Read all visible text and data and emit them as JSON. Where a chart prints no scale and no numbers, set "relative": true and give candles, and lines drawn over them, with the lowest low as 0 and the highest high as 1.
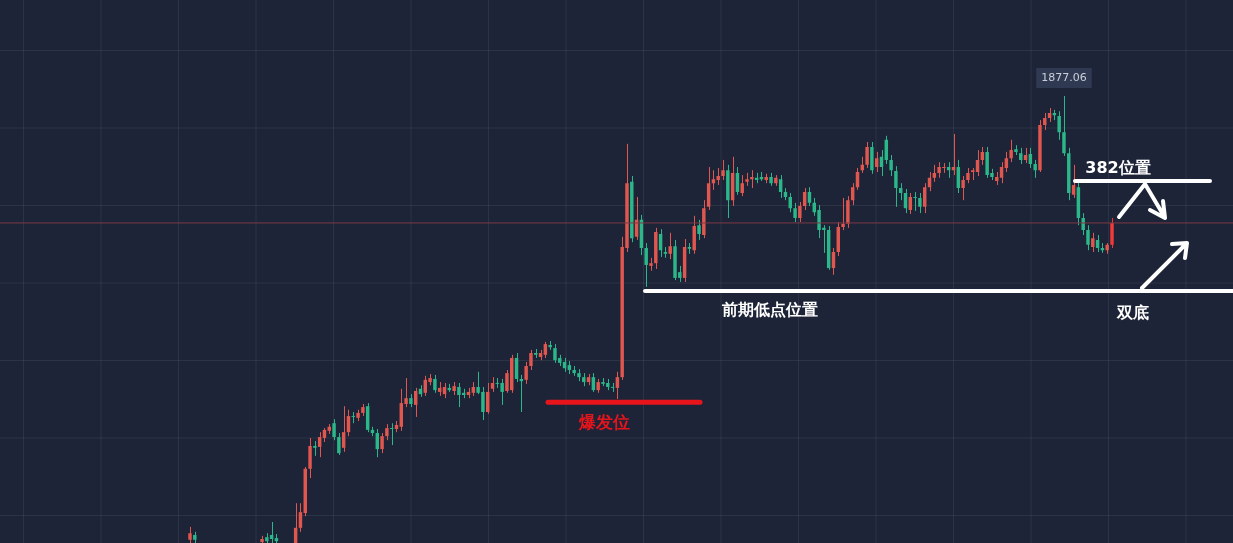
{
  "chart_data": {
    "type": "candlestick",
    "relative": true,
    "grid": true,
    "categories": [
      null,
      null,
      null,
      null,
      null,
      null,
      null,
      null,
      null,
      null,
      null,
      null,
      null,
      null,
      null,
      null,
      null,
      null,
      null,
      null,
      null,
      null,
      null,
      null,
      null,
      null,
      null,
      null,
      null,
      null,
      null,
      null,
      null,
      null,
      null,
      null,
      null,
      null,
      null,
      null,
      null,
      null,
      null,
      null,
      null,
      null,
      null,
      null,
      null,
      null,
      null,
      null,
      null,
      null,
      null,
      null,
      null,
      null,
      null,
      null,
      null,
      null,
      null,
      null,
      null,
      null,
      null,
      null,
      null,
      null,
      null,
      null,
      null,
      null,
      null,
      null,
      null,
      null,
      null,
      null,
      null,
      null,
      null,
      null,
      null,
      null,
      null,
      null,
      null,
      null,
      null,
      null,
      null,
      null,
      null,
      null,
      null,
      null,
      null,
      null,
      null,
      null,
      null,
      null,
      null,
      null,
      null,
      null,
      null,
      null,
      null,
      null,
      null,
      null,
      null,
      null,
      null,
      null,
      null,
      null,
      null,
      null,
      null,
      null,
      null,
      null,
      null,
      null,
      null,
      null,
      null,
      null,
      null,
      null,
      null,
      null,
      null,
      null,
      null,
      null,
      null,
      null,
      null,
      null,
      null,
      null,
      null,
      null,
      null,
      null,
      null,
      null,
      null,
      null,
      null,
      null,
      null,
      null,
      null,
      null,
      null,
      null,
      null,
      null,
      null,
      null,
      null,
      null,
      null,
      null,
      null,
      null,
      null,
      null,
      null,
      null,
      null,
      null,
      null,
      null,
      null,
      null,
      null,
      null,
      null,
      null,
      null,
      null,
      null,
      null,
      null,
      null,
      null
    ],
    "ohlc": [
      [
        0.007,
        0.036,
        0,
        0.022
      ],
      [
        0.018,
        0.025,
        0,
        0.007
      ],
      null,
      null,
      null,
      null,
      null,
      null,
      null,
      null,
      null,
      null,
      null,
      null,
      null,
      [
        0.002,
        0.016,
        0,
        0.009
      ],
      [
        0.013,
        0.022,
        0,
        0.004
      ],
      [
        0.018,
        0.047,
        0,
        0.009
      ],
      [
        0.011,
        0.02,
        0,
        0.004
      ],
      null,
      null,
      null,
      [
        0,
        0.089,
        0,
        0.034
      ],
      [
        0.034,
        0.089,
        0.025,
        0.069
      ],
      [
        0.067,
        0.17,
        0.06,
        0.166
      ],
      [
        0.166,
        0.235,
        0.145,
        0.217
      ],
      [
        0.217,
        0.228,
        0.195,
        0.213
      ],
      [
        0.215,
        0.248,
        0.192,
        0.237
      ],
      [
        0.235,
        0.257,
        0.226,
        0.253
      ],
      [
        0.251,
        0.266,
        0.244,
        0.26
      ],
      [
        0.268,
        0.277,
        0.23,
        0.237
      ],
      [
        0.237,
        0.246,
        0.197,
        0.201
      ],
      [
        0.213,
        0.306,
        0.204,
        0.248
      ],
      [
        0.248,
        0.298,
        0.239,
        0.284
      ],
      [
        0.284,
        0.293,
        0.268,
        0.282
      ],
      [
        0.28,
        0.298,
        0.273,
        0.291
      ],
      [
        0.291,
        0.311,
        0.284,
        0.304
      ],
      [
        0.306,
        0.313,
        0.248,
        0.253
      ],
      [
        0.253,
        0.26,
        0.239,
        0.246
      ],
      [
        0.246,
        0.255,
        0.192,
        0.21
      ],
      [
        0.21,
        0.246,
        0.201,
        0.239
      ],
      [
        0.239,
        0.266,
        0.23,
        0.257
      ],
      [
        0.257,
        0.268,
        0.219,
        0.255
      ],
      [
        0.255,
        0.273,
        0.248,
        0.264
      ],
      [
        0.26,
        0.345,
        0.251,
        0.313
      ],
      [
        0.311,
        0.369,
        0.304,
        0.324
      ],
      [
        0.324,
        0.333,
        0.304,
        0.311
      ],
      [
        0.309,
        0.347,
        0.282,
        0.34
      ],
      [
        0.345,
        0.353,
        0.327,
        0.333
      ],
      [
        0.336,
        0.374,
        0.329,
        0.365
      ],
      [
        0.36,
        0.378,
        0.353,
        0.369
      ],
      [
        0.367,
        0.376,
        0.336,
        0.342
      ],
      [
        0.338,
        0.36,
        0.329,
        0.347
      ],
      [
        0.333,
        0.358,
        0.324,
        0.349
      ],
      [
        0.347,
        0.356,
        0.338,
        0.342
      ],
      [
        0.34,
        0.36,
        0.331,
        0.351
      ],
      [
        0.349,
        0.358,
        0.304,
        0.331
      ],
      [
        0.336,
        0.345,
        0.324,
        0.331
      ],
      [
        0.331,
        0.347,
        0.324,
        0.338
      ],
      [
        0.336,
        0.36,
        0.329,
        0.349
      ],
      [
        0.349,
        0.383,
        0.333,
        0.336
      ],
      [
        0.338,
        0.349,
        0.275,
        0.293
      ],
      [
        0.293,
        0.358,
        0.289,
        0.338
      ],
      [
        0.345,
        0.371,
        0.338,
        0.358
      ],
      [
        0.358,
        0.369,
        0.347,
        0.356
      ],
      [
        0.358,
        0.367,
        0.309,
        0.338
      ],
      [
        0.34,
        0.387,
        0.336,
        0.38
      ],
      [
        0.342,
        0.421,
        0.336,
        0.414
      ],
      [
        0.414,
        0.425,
        0.36,
        0.367
      ],
      [
        0.367,
        0.376,
        0.293,
        0.362
      ],
      [
        0.365,
        0.405,
        0.356,
        0.396
      ],
      [
        0.396,
        0.432,
        0.387,
        0.425
      ],
      [
        0.425,
        0.434,
        0.414,
        0.421
      ],
      [
        0.416,
        0.432,
        0.409,
        0.425
      ],
      [
        0.421,
        0.45,
        0.414,
        0.445
      ],
      [
        0.443,
        0.452,
        0.432,
        0.438
      ],
      [
        0.436,
        0.445,
        0.403,
        0.409
      ],
      [
        0.414,
        0.421,
        0.396,
        0.403
      ],
      [
        0.405,
        0.414,
        0.383,
        0.391
      ],
      [
        0.398,
        0.407,
        0.378,
        0.387
      ],
      [
        0.387,
        0.396,
        0.374,
        0.38
      ],
      [
        0.38,
        0.389,
        0.362,
        0.371
      ],
      [
        0.371,
        0.38,
        0.351,
        0.36
      ],
      [
        0.36,
        0.378,
        0.353,
        0.371
      ],
      [
        0.371,
        0.38,
        0.338,
        0.342
      ],
      [
        0.342,
        0.367,
        0.336,
        0.36
      ],
      [
        0.36,
        0.369,
        0.351,
        0.356
      ],
      [
        0.358,
        0.367,
        0.342,
        0.349
      ],
      [
        0.349,
        0.358,
        0.338,
        0.347
      ],
      [
        0.347,
        0.383,
        0.322,
        0.371
      ],
      [
        0.371,
        0.685,
        0.365,
        0.662
      ],
      [
        0.66,
        0.893,
        0.651,
        0.805
      ],
      [
        0.808,
        0.821,
        0.673,
        0.682
      ],
      [
        0.685,
        0.774,
        0.678,
        0.723
      ],
      [
        0.723,
        0.734,
        0.644,
        0.66
      ],
      [
        0.66,
        0.671,
        0.573,
        0.622
      ],
      [
        0.62,
        0.638,
        0.609,
        0.626
      ],
      [
        0.626,
        0.705,
        0.613,
        0.696
      ],
      [
        0.691,
        0.702,
        0.64,
        0.655
      ],
      [
        0.651,
        0.662,
        0.638,
        0.647
      ],
      [
        0.647,
        0.694,
        0.635,
        0.664
      ],
      [
        0.664,
        0.678,
        0.588,
        0.593
      ],
      [
        0.606,
        0.62,
        0.584,
        0.593
      ],
      [
        0.593,
        0.68,
        0.584,
        0.662
      ],
      [
        0.662,
        0.671,
        0.647,
        0.658
      ],
      [
        0.655,
        0.732,
        0.647,
        0.709
      ],
      [
        0.711,
        0.723,
        0.678,
        0.691
      ],
      [
        0.689,
        0.767,
        0.682,
        0.749
      ],
      [
        0.752,
        0.841,
        0.745,
        0.805
      ],
      [
        0.805,
        0.834,
        0.79,
        0.814
      ],
      [
        0.812,
        0.839,
        0.801,
        0.821
      ],
      [
        0.821,
        0.857,
        0.812,
        0.834
      ],
      [
        0.834,
        0.846,
        0.727,
        0.767
      ],
      [
        0.767,
        0.864,
        0.754,
        0.828
      ],
      [
        0.828,
        0.841,
        0.779,
        0.785
      ],
      [
        0.783,
        0.823,
        0.776,
        0.805
      ],
      [
        0.808,
        0.828,
        0.799,
        0.814
      ],
      [
        0.814,
        0.834,
        0.794,
        0.819
      ],
      [
        0.817,
        0.828,
        0.805,
        0.812
      ],
      [
        0.819,
        0.83,
        0.81,
        0.814
      ],
      [
        0.812,
        0.826,
        0.805,
        0.819
      ],
      [
        0.819,
        0.828,
        0.799,
        0.805
      ],
      [
        0.805,
        0.823,
        0.799,
        0.817
      ],
      [
        0.814,
        0.823,
        0.772,
        0.785
      ],
      [
        0.785,
        0.794,
        0.767,
        0.774
      ],
      [
        0.774,
        0.783,
        0.74,
        0.749
      ],
      [
        0.749,
        0.761,
        0.718,
        0.727
      ],
      [
        0.727,
        0.763,
        0.718,
        0.754
      ],
      [
        0.754,
        0.794,
        0.745,
        0.785
      ],
      [
        0.785,
        0.796,
        0.754,
        0.761
      ],
      [
        0.761,
        0.772,
        0.732,
        0.74
      ],
      [
        0.745,
        0.756,
        0.682,
        0.7
      ],
      [
        0.705,
        0.711,
        0.649,
        0.7
      ],
      [
        0.7,
        0.709,
        0.611,
        0.615
      ],
      [
        0.615,
        0.66,
        0.6,
        0.651
      ],
      [
        0.651,
        0.718,
        0.642,
        0.707
      ],
      [
        0.707,
        0.772,
        0.7,
        0.714
      ],
      [
        0.714,
        0.776,
        0.705,
        0.767
      ],
      [
        0.767,
        0.805,
        0.756,
        0.796
      ],
      [
        0.796,
        0.839,
        0.79,
        0.83
      ],
      [
        0.834,
        0.864,
        0.828,
        0.846
      ],
      [
        0.846,
        0.897,
        0.839,
        0.886
      ],
      [
        0.886,
        0.897,
        0.826,
        0.834
      ],
      [
        0.841,
        0.875,
        0.83,
        0.861
      ],
      [
        0.864,
        0.879,
        0.821,
        0.841
      ],
      [
        0.902,
        0.911,
        0.848,
        0.857
      ],
      [
        0.857,
        0.868,
        0.821,
        0.834
      ],
      [
        0.832,
        0.843,
        0.752,
        0.794
      ],
      [
        0.794,
        0.805,
        0.767,
        0.783
      ],
      [
        0.783,
        0.792,
        0.738,
        0.749
      ],
      [
        0.745,
        0.783,
        0.736,
        0.774
      ],
      [
        0.774,
        0.785,
        0.743,
        0.772
      ],
      [
        0.772,
        0.783,
        0.738,
        0.752
      ],
      [
        0.752,
        0.805,
        0.738,
        0.796
      ],
      [
        0.796,
        0.83,
        0.787,
        0.817
      ],
      [
        0.817,
        0.846,
        0.808,
        0.828
      ],
      [
        0.828,
        0.852,
        0.817,
        0.841
      ],
      [
        0.839,
        0.85,
        0.828,
        0.841
      ],
      [
        0.841,
        0.852,
        0.817,
        0.834
      ],
      [
        0.834,
        0.915,
        0.823,
        0.841
      ],
      [
        0.841,
        0.857,
        0.783,
        0.794
      ],
      [
        0.794,
        0.821,
        0.767,
        0.812
      ],
      [
        0.812,
        0.839,
        0.805,
        0.828
      ],
      [
        0.83,
        0.839,
        0.812,
        0.834
      ],
      [
        0.83,
        0.879,
        0.821,
        0.857
      ],
      [
        0.857,
        0.886,
        0.846,
        0.875
      ],
      [
        0.875,
        0.886,
        0.817,
        0.823
      ],
      [
        0.828,
        0.837,
        0.812,
        0.819
      ],
      [
        0.81,
        0.83,
        0.801,
        0.819
      ],
      [
        0.817,
        0.852,
        0.805,
        0.841
      ],
      [
        0.839,
        0.875,
        0.83,
        0.861
      ],
      [
        0.861,
        0.902,
        0.852,
        0.879
      ],
      [
        0.881,
        0.89,
        0.868,
        0.875
      ],
      [
        0.872,
        0.884,
        0.848,
        0.857
      ],
      [
        0.857,
        0.884,
        0.85,
        0.868
      ],
      [
        0.87,
        0.884,
        0.839,
        0.848
      ],
      [
        0.848,
        0.857,
        0.817,
        0.834
      ],
      [
        0.834,
        0.946,
        0.83,
        0.935
      ],
      [
        0.935,
        0.962,
        0.924,
        0.951
      ],
      [
        0.951,
        0.973,
        0.942,
        0.962
      ],
      [
        0.962,
        0.969,
        0.946,
        0.957
      ],
      [
        0.955,
        0.966,
        0.902,
        0.919
      ],
      [
        0.919,
        1,
        0.866,
        0.872
      ],
      [
        0.872,
        0.884,
        0.767,
        0.783
      ],
      [
        0.779,
        0.846,
        0.772,
        0.801
      ],
      [
        0.796,
        0.808,
        0.711,
        0.727
      ],
      [
        0.727,
        0.738,
        0.689,
        0.7
      ],
      [
        0.7,
        0.711,
        0.655,
        0.667
      ],
      [
        0.662,
        0.694,
        0.651,
        0.682
      ],
      [
        0.678,
        0.689,
        0.651,
        0.66
      ],
      [
        0.66,
        0.671,
        0.649,
        0.655
      ],
      [
        0.655,
        0.671,
        0.647,
        0.667
      ],
      [
        0.667,
        0.727,
        0.66,
        0.716
      ]
    ],
    "colors": [
      "#e0574f",
      "#2bb78a",
      null,
      null,
      null,
      null,
      null,
      null,
      null,
      null,
      null,
      null,
      null,
      null,
      null,
      "#e0574f",
      "#2bb78a",
      "#2bb78a",
      "#2bb78a",
      null,
      null,
      null,
      "#e0574f",
      "#e0574f",
      "#e0574f",
      "#e0574f",
      "#2bb78a",
      "#e0574f",
      "#e0574f",
      "#e0574f",
      "#2bb78a",
      "#2bb78a",
      "#e0574f",
      "#e0574f",
      "#2bb78a",
      "#e0574f",
      "#e0574f",
      "#2bb78a",
      "#2bb78a",
      "#2bb78a",
      "#e0574f",
      "#e0574f",
      "#2bb78a",
      "#e0574f",
      "#e0574f",
      "#e0574f",
      "#2bb78a",
      "#e0574f",
      "#2bb78a",
      "#e0574f",
      "#e0574f",
      "#2bb78a",
      "#e0574f",
      "#e0574f",
      "#2bb78a",
      "#e0574f",
      "#2bb78a",
      "#2bb78a",
      "#e0574f",
      "#e0574f",
      "#2bb78a",
      "#2bb78a",
      "#e0574f",
      "#e0574f",
      "#2bb78a",
      "#2bb78a",
      "#e0574f",
      "#e0574f",
      "#2bb78a",
      "#2bb78a",
      "#e0574f",
      "#e0574f",
      "#2bb78a",
      "#e0574f",
      "#e0574f",
      "#2bb78a",
      "#2bb78a",
      "#2bb78a",
      "#2bb78a",
      "#2bb78a",
      "#2bb78a",
      "#2bb78a",
      "#2bb78a",
      "#e0574f",
      "#2bb78a",
      "#e0574f",
      "#2bb78a",
      "#2bb78a",
      "#2bb78a",
      "#e0574f",
      "#e0574f",
      "#e0574f",
      "#2bb78a",
      "#e0574f",
      "#2bb78a",
      "#2bb78a",
      "#e0574f",
      "#e0574f",
      "#2bb78a",
      "#2bb78a",
      "#e0574f",
      "#2bb78a",
      "#2bb78a",
      "#e0574f",
      "#2bb78a",
      "#e0574f",
      "#2bb78a",
      "#e0574f",
      "#e0574f",
      "#e0574f",
      "#e0574f",
      "#e0574f",
      "#2bb78a",
      "#e0574f",
      "#2bb78a",
      "#e0574f",
      "#e0574f",
      "#e0574f",
      "#2bb78a",
      "#2bb78a",
      "#e0574f",
      "#2bb78a",
      "#e0574f",
      "#2bb78a",
      "#2bb78a",
      "#2bb78a",
      "#2bb78a",
      "#e0574f",
      "#e0574f",
      "#2bb78a",
      "#2bb78a",
      "#2bb78a",
      "#2bb78a",
      "#2bb78a",
      "#e0574f",
      "#e0574f",
      "#e0574f",
      "#e0574f",
      "#e0574f",
      "#e0574f",
      "#e0574f",
      "#e0574f",
      "#2bb78a",
      "#e0574f",
      "#2bb78a",
      "#2bb78a",
      "#2bb78a",
      "#2bb78a",
      "#2bb78a",
      "#2bb78a",
      "#e0574f",
      "#2bb78a",
      "#2bb78a",
      "#e0574f",
      "#e0574f",
      "#e0574f",
      "#e0574f",
      "#e0574f",
      "#2bb78a",
      "#e0574f",
      "#2bb78a",
      "#e0574f",
      "#e0574f",
      "#e0574f",
      "#e0574f",
      "#e0574f",
      "#2bb78a",
      "#2bb78a",
      "#e0574f",
      "#e0574f",
      "#e0574f",
      "#e0574f",
      "#2bb78a",
      "#2bb78a",
      "#e0574f",
      "#2bb78a",
      "#2bb78a",
      "#e0574f",
      "#e0574f",
      "#e0574f",
      "#2bb78a",
      "#2bb78a",
      "#2bb78a",
      "#2bb78a",
      "#e0574f",
      "#2bb78a",
      "#2bb78a",
      "#2bb78a",
      "#e0574f",
      "#2bb78a",
      "#2bb78a",
      "#e0574f",
      "#f03a3a"
    ],
    "ref_lines": [
      {
        "axis": "y",
        "value": 0.315,
        "label": "爆发位",
        "color": "#e8141c"
      },
      {
        "axis": "y",
        "value": 0.564,
        "label": "前期低点位置",
        "color": "#ffffff"
      },
      {
        "axis": "y",
        "value": 0.81,
        "label": "382位置",
        "color": "#ffffff"
      },
      {
        "axis": "y",
        "value": 0.716,
        "label": null,
        "color": "#7d3a44"
      }
    ],
    "annotations": [
      {
        "text": "1877.06",
        "y": 1
      },
      "双底"
    ]
  }
}
